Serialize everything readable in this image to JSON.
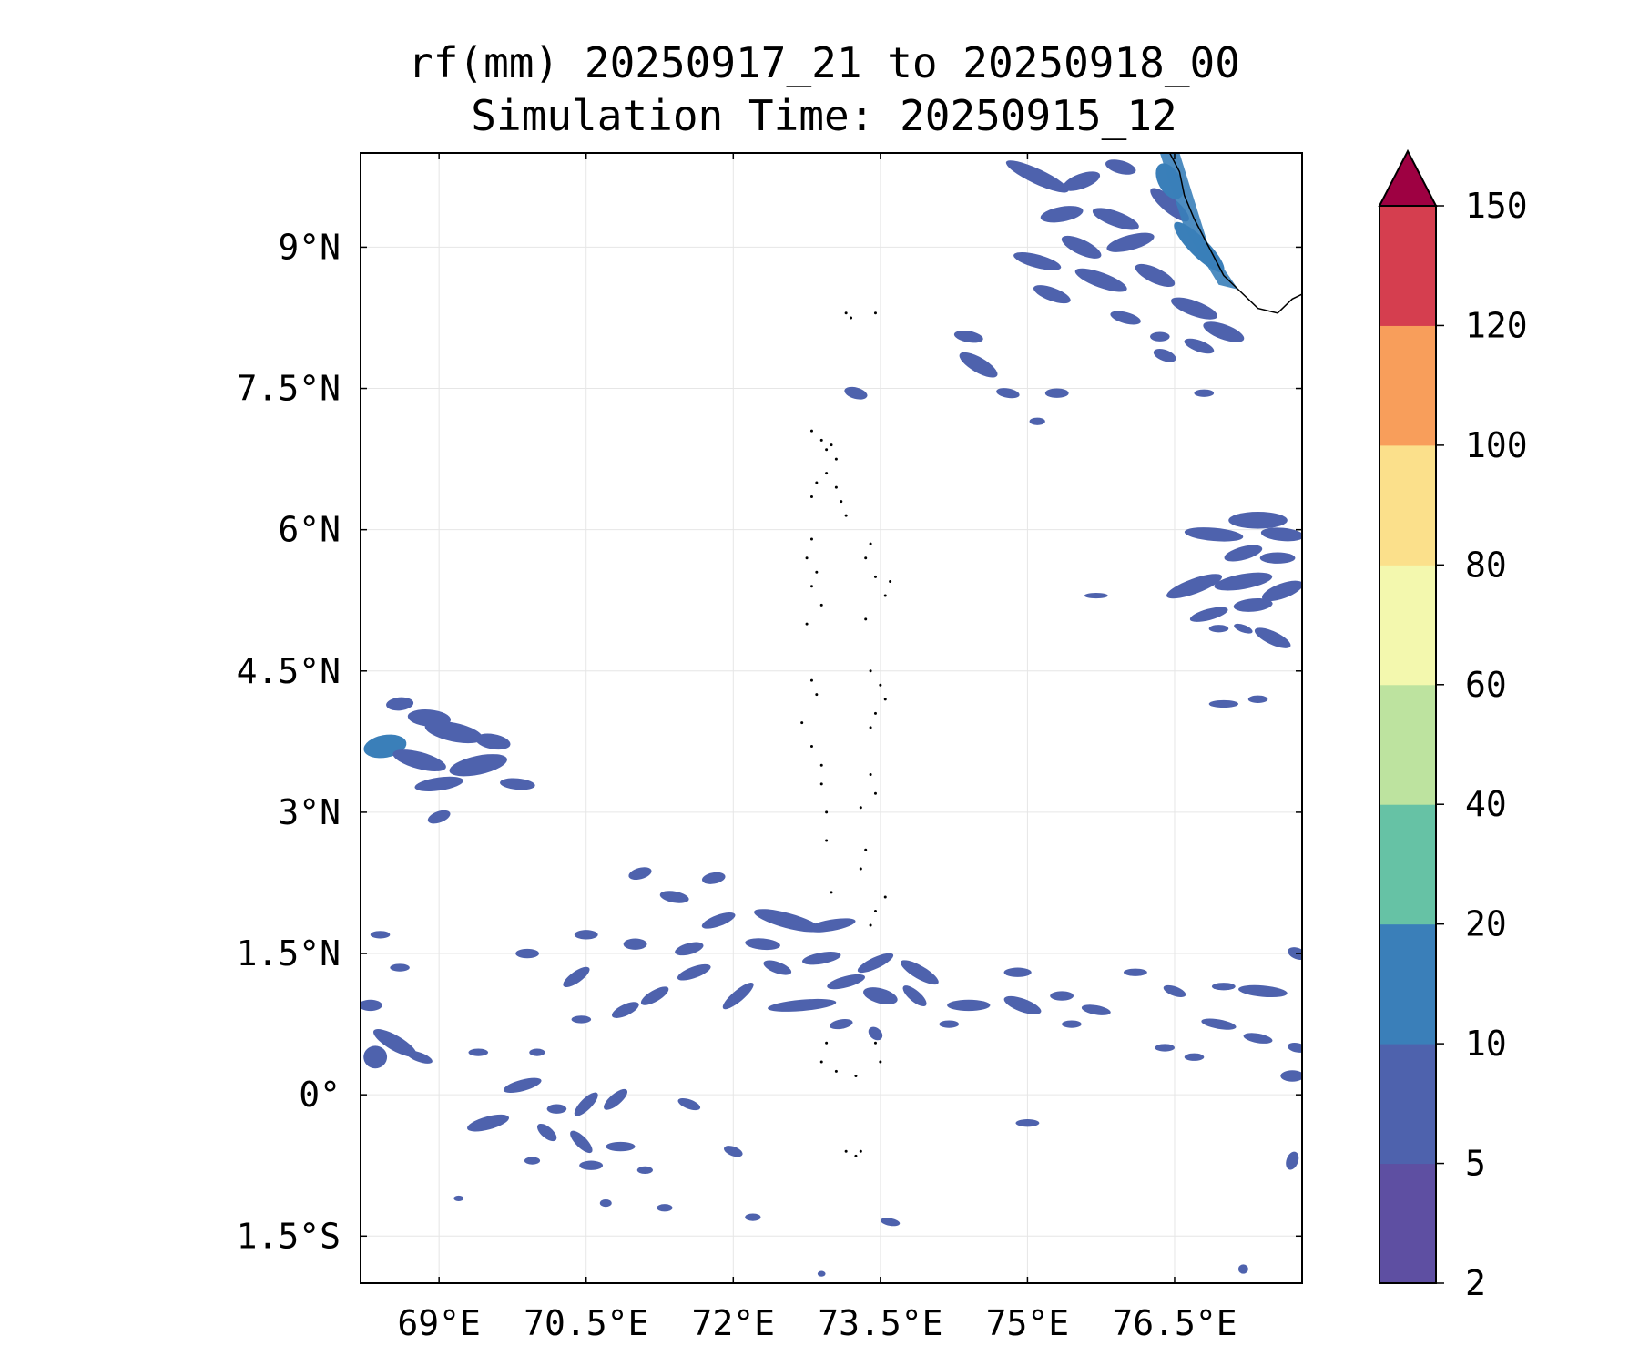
{
  "title": {
    "line1": "rf(mm) 20250917_21 to 20250918_00",
    "line2": "Simulation Time: 20250915_12"
  },
  "map": {
    "extent": {
      "lon_min": 68.2,
      "lon_max": 77.8,
      "lat_min": -2.0,
      "lat_max": 10.0
    },
    "lon_ticks": [
      {
        "value": 69.0,
        "label": "69°E"
      },
      {
        "value": 70.5,
        "label": "70.5°E"
      },
      {
        "value": 72.0,
        "label": "72°E"
      },
      {
        "value": 73.5,
        "label": "73.5°E"
      },
      {
        "value": 75.0,
        "label": "75°E"
      },
      {
        "value": 76.5,
        "label": "76.5°E"
      }
    ],
    "lat_ticks": [
      {
        "value": 9.0,
        "label": "9°N"
      },
      {
        "value": 7.5,
        "label": "7.5°N"
      },
      {
        "value": 6.0,
        "label": "6°N"
      },
      {
        "value": 4.5,
        "label": "4.5°N"
      },
      {
        "value": 3.0,
        "label": "3°N"
      },
      {
        "value": 1.5,
        "label": "1.5°N"
      },
      {
        "value": 0.0,
        "label": "0°"
      },
      {
        "value": -1.5,
        "label": "1.5°S"
      }
    ],
    "grid": true,
    "coastline_color": "#000000",
    "rain_cells": [
      {
        "lon": 68.6,
        "lat": 4.15,
        "rx": 0.14,
        "ry": 0.07,
        "rot": -5,
        "level": 2
      },
      {
        "lon": 68.9,
        "lat": 4.0,
        "rx": 0.22,
        "ry": 0.09,
        "rot": 5,
        "level": 2
      },
      {
        "lon": 69.15,
        "lat": 3.85,
        "rx": 0.3,
        "ry": 0.1,
        "rot": 12,
        "level": 2
      },
      {
        "lon": 68.45,
        "lat": 3.7,
        "rx": 0.22,
        "ry": 0.12,
        "rot": -10,
        "level": 3
      },
      {
        "lon": 68.8,
        "lat": 3.55,
        "rx": 0.28,
        "ry": 0.09,
        "rot": 15,
        "level": 2
      },
      {
        "lon": 69.4,
        "lat": 3.5,
        "rx": 0.3,
        "ry": 0.1,
        "rot": -12,
        "level": 2
      },
      {
        "lon": 69.0,
        "lat": 3.3,
        "rx": 0.25,
        "ry": 0.07,
        "rot": -8,
        "level": 2
      },
      {
        "lon": 69.8,
        "lat": 3.3,
        "rx": 0.18,
        "ry": 0.06,
        "rot": 5,
        "level": 2
      },
      {
        "lon": 69.55,
        "lat": 3.75,
        "rx": 0.18,
        "ry": 0.08,
        "rot": 10,
        "level": 2
      },
      {
        "lon": 69.0,
        "lat": 2.95,
        "rx": 0.12,
        "ry": 0.06,
        "rot": -20,
        "level": 2
      },
      {
        "lon": 75.1,
        "lat": 9.75,
        "rx": 0.35,
        "ry": 0.08,
        "rot": 25,
        "level": 2
      },
      {
        "lon": 75.55,
        "lat": 9.7,
        "rx": 0.2,
        "ry": 0.08,
        "rot": -20,
        "level": 2
      },
      {
        "lon": 75.95,
        "lat": 9.85,
        "rx": 0.16,
        "ry": 0.07,
        "rot": 15,
        "level": 2
      },
      {
        "lon": 75.35,
        "lat": 9.35,
        "rx": 0.22,
        "ry": 0.08,
        "rot": -10,
        "level": 2
      },
      {
        "lon": 75.9,
        "lat": 9.3,
        "rx": 0.25,
        "ry": 0.08,
        "rot": 20,
        "level": 2
      },
      {
        "lon": 75.1,
        "lat": 8.85,
        "rx": 0.25,
        "ry": 0.07,
        "rot": 15,
        "level": 2
      },
      {
        "lon": 75.55,
        "lat": 9.0,
        "rx": 0.22,
        "ry": 0.08,
        "rot": 25,
        "level": 2
      },
      {
        "lon": 76.05,
        "lat": 9.05,
        "rx": 0.25,
        "ry": 0.08,
        "rot": -15,
        "level": 2
      },
      {
        "lon": 75.75,
        "lat": 8.65,
        "rx": 0.28,
        "ry": 0.08,
        "rot": 20,
        "level": 2
      },
      {
        "lon": 76.3,
        "lat": 8.7,
        "rx": 0.22,
        "ry": 0.08,
        "rot": 25,
        "level": 2
      },
      {
        "lon": 75.25,
        "lat": 8.5,
        "rx": 0.2,
        "ry": 0.07,
        "rot": 20,
        "level": 2
      },
      {
        "lon": 76.0,
        "lat": 8.25,
        "rx": 0.16,
        "ry": 0.06,
        "rot": 15,
        "level": 2
      },
      {
        "lon": 76.7,
        "lat": 8.35,
        "rx": 0.25,
        "ry": 0.08,
        "rot": 20,
        "level": 2
      },
      {
        "lon": 77.0,
        "lat": 8.1,
        "rx": 0.22,
        "ry": 0.08,
        "rot": 20,
        "level": 2
      },
      {
        "lon": 76.75,
        "lat": 7.95,
        "rx": 0.16,
        "ry": 0.06,
        "rot": 20,
        "level": 2
      },
      {
        "lon": 76.35,
        "lat": 8.05,
        "rx": 0.1,
        "ry": 0.05,
        "rot": 0,
        "level": 2
      },
      {
        "lon": 76.45,
        "lat": 9.45,
        "rx": 0.25,
        "ry": 0.08,
        "rot": 40,
        "level": 2
      },
      {
        "lon": 76.75,
        "lat": 9.0,
        "rx": 0.35,
        "ry": 0.1,
        "rot": 45,
        "level": 3
      },
      {
        "lon": 76.45,
        "lat": 9.7,
        "rx": 0.2,
        "ry": 0.12,
        "rot": 60,
        "level": 3
      },
      {
        "lon": 74.4,
        "lat": 8.05,
        "rx": 0.15,
        "ry": 0.06,
        "rot": 10,
        "level": 2
      },
      {
        "lon": 74.5,
        "lat": 7.75,
        "rx": 0.22,
        "ry": 0.08,
        "rot": 30,
        "level": 2
      },
      {
        "lon": 74.8,
        "lat": 7.45,
        "rx": 0.12,
        "ry": 0.05,
        "rot": 10,
        "level": 2
      },
      {
        "lon": 75.3,
        "lat": 7.45,
        "rx": 0.12,
        "ry": 0.05,
        "rot": 0,
        "level": 2
      },
      {
        "lon": 75.1,
        "lat": 7.15,
        "rx": 0.08,
        "ry": 0.04,
        "rot": 0,
        "level": 2
      },
      {
        "lon": 76.4,
        "lat": 7.85,
        "rx": 0.12,
        "ry": 0.06,
        "rot": 20,
        "level": 2
      },
      {
        "lon": 76.8,
        "lat": 7.45,
        "rx": 0.1,
        "ry": 0.04,
        "rot": 0,
        "level": 2
      },
      {
        "lon": 73.25,
        "lat": 7.45,
        "rx": 0.12,
        "ry": 0.06,
        "rot": 15,
        "level": 2
      },
      {
        "lon": 76.9,
        "lat": 5.95,
        "rx": 0.3,
        "ry": 0.07,
        "rot": 5,
        "level": 2
      },
      {
        "lon": 77.35,
        "lat": 6.1,
        "rx": 0.3,
        "ry": 0.09,
        "rot": 0,
        "level": 2
      },
      {
        "lon": 77.6,
        "lat": 5.95,
        "rx": 0.22,
        "ry": 0.07,
        "rot": 5,
        "level": 2
      },
      {
        "lon": 77.2,
        "lat": 5.75,
        "rx": 0.2,
        "ry": 0.07,
        "rot": -15,
        "level": 2
      },
      {
        "lon": 77.55,
        "lat": 5.7,
        "rx": 0.18,
        "ry": 0.06,
        "rot": 0,
        "level": 2
      },
      {
        "lon": 76.7,
        "lat": 5.4,
        "rx": 0.3,
        "ry": 0.08,
        "rot": -20,
        "level": 2
      },
      {
        "lon": 77.2,
        "lat": 5.45,
        "rx": 0.3,
        "ry": 0.08,
        "rot": -10,
        "level": 2
      },
      {
        "lon": 77.6,
        "lat": 5.35,
        "rx": 0.22,
        "ry": 0.08,
        "rot": -20,
        "level": 2
      },
      {
        "lon": 77.3,
        "lat": 5.2,
        "rx": 0.2,
        "ry": 0.07,
        "rot": -5,
        "level": 2
      },
      {
        "lon": 76.85,
        "lat": 5.1,
        "rx": 0.2,
        "ry": 0.06,
        "rot": -15,
        "level": 2
      },
      {
        "lon": 77.5,
        "lat": 4.85,
        "rx": 0.2,
        "ry": 0.07,
        "rot": 25,
        "level": 2
      },
      {
        "lon": 76.95,
        "lat": 4.95,
        "rx": 0.1,
        "ry": 0.04,
        "rot": 0,
        "level": 2
      },
      {
        "lon": 77.2,
        "lat": 4.95,
        "rx": 0.1,
        "ry": 0.04,
        "rot": 20,
        "level": 2
      },
      {
        "lon": 75.7,
        "lat": 5.3,
        "rx": 0.12,
        "ry": 0.03,
        "rot": 0,
        "level": 2
      },
      {
        "lon": 77.0,
        "lat": 4.15,
        "rx": 0.15,
        "ry": 0.04,
        "rot": 0,
        "level": 2
      },
      {
        "lon": 77.35,
        "lat": 4.2,
        "rx": 0.1,
        "ry": 0.04,
        "rot": 0,
        "level": 2
      },
      {
        "lon": 71.8,
        "lat": 2.3,
        "rx": 0.12,
        "ry": 0.06,
        "rot": -10,
        "level": 2
      },
      {
        "lon": 71.05,
        "lat": 2.35,
        "rx": 0.12,
        "ry": 0.06,
        "rot": -15,
        "level": 2
      },
      {
        "lon": 71.4,
        "lat": 2.1,
        "rx": 0.15,
        "ry": 0.06,
        "rot": 10,
        "level": 2
      },
      {
        "lon": 72.55,
        "lat": 1.85,
        "rx": 0.35,
        "ry": 0.08,
        "rot": 15,
        "level": 2
      },
      {
        "lon": 73.0,
        "lat": 1.8,
        "rx": 0.25,
        "ry": 0.06,
        "rot": -10,
        "level": 2
      },
      {
        "lon": 72.3,
        "lat": 1.6,
        "rx": 0.18,
        "ry": 0.06,
        "rot": 5,
        "level": 2
      },
      {
        "lon": 71.0,
        "lat": 1.6,
        "rx": 0.12,
        "ry": 0.06,
        "rot": 0,
        "level": 2
      },
      {
        "lon": 71.55,
        "lat": 1.55,
        "rx": 0.15,
        "ry": 0.06,
        "rot": -15,
        "level": 2
      },
      {
        "lon": 71.85,
        "lat": 1.85,
        "rx": 0.18,
        "ry": 0.06,
        "rot": -20,
        "level": 2
      },
      {
        "lon": 72.9,
        "lat": 1.45,
        "rx": 0.2,
        "ry": 0.06,
        "rot": -10,
        "level": 2
      },
      {
        "lon": 72.45,
        "lat": 1.35,
        "rx": 0.15,
        "ry": 0.06,
        "rot": 20,
        "level": 2
      },
      {
        "lon": 71.6,
        "lat": 1.3,
        "rx": 0.18,
        "ry": 0.06,
        "rot": -20,
        "level": 2
      },
      {
        "lon": 73.45,
        "lat": 1.4,
        "rx": 0.2,
        "ry": 0.06,
        "rot": -25,
        "level": 2
      },
      {
        "lon": 73.9,
        "lat": 1.3,
        "rx": 0.22,
        "ry": 0.07,
        "rot": 30,
        "level": 2
      },
      {
        "lon": 73.15,
        "lat": 1.2,
        "rx": 0.2,
        "ry": 0.06,
        "rot": -15,
        "level": 2
      },
      {
        "lon": 73.5,
        "lat": 1.05,
        "rx": 0.18,
        "ry": 0.08,
        "rot": 15,
        "level": 2
      },
      {
        "lon": 73.85,
        "lat": 1.05,
        "rx": 0.15,
        "ry": 0.06,
        "rot": 40,
        "level": 2
      },
      {
        "lon": 72.05,
        "lat": 1.05,
        "rx": 0.2,
        "ry": 0.06,
        "rot": -40,
        "level": 2
      },
      {
        "lon": 71.2,
        "lat": 1.05,
        "rx": 0.16,
        "ry": 0.06,
        "rot": -30,
        "level": 2
      },
      {
        "lon": 70.4,
        "lat": 1.25,
        "rx": 0.16,
        "ry": 0.06,
        "rot": -35,
        "level": 2
      },
      {
        "lon": 70.9,
        "lat": 0.9,
        "rx": 0.15,
        "ry": 0.06,
        "rot": -25,
        "level": 2
      },
      {
        "lon": 72.7,
        "lat": 0.95,
        "rx": 0.35,
        "ry": 0.06,
        "rot": -5,
        "level": 2
      },
      {
        "lon": 73.1,
        "lat": 0.75,
        "rx": 0.12,
        "ry": 0.05,
        "rot": -10,
        "level": 2
      },
      {
        "lon": 73.45,
        "lat": 0.65,
        "rx": 0.08,
        "ry": 0.06,
        "rot": 40,
        "level": 2
      },
      {
        "lon": 74.4,
        "lat": 0.95,
        "rx": 0.22,
        "ry": 0.06,
        "rot": 0,
        "level": 2
      },
      {
        "lon": 74.2,
        "lat": 0.75,
        "rx": 0.1,
        "ry": 0.04,
        "rot": 0,
        "level": 2
      },
      {
        "lon": 74.9,
        "lat": 1.3,
        "rx": 0.14,
        "ry": 0.05,
        "rot": 0,
        "level": 2
      },
      {
        "lon": 74.95,
        "lat": 0.95,
        "rx": 0.2,
        "ry": 0.07,
        "rot": 20,
        "level": 2
      },
      {
        "lon": 75.35,
        "lat": 1.05,
        "rx": 0.12,
        "ry": 0.05,
        "rot": 0,
        "level": 2
      },
      {
        "lon": 75.7,
        "lat": 0.9,
        "rx": 0.15,
        "ry": 0.05,
        "rot": 10,
        "level": 2
      },
      {
        "lon": 75.45,
        "lat": 0.75,
        "rx": 0.1,
        "ry": 0.04,
        "rot": 0,
        "level": 2
      },
      {
        "lon": 76.1,
        "lat": 1.3,
        "rx": 0.12,
        "ry": 0.04,
        "rot": 0,
        "level": 2
      },
      {
        "lon": 76.5,
        "lat": 1.1,
        "rx": 0.12,
        "ry": 0.05,
        "rot": 20,
        "level": 2
      },
      {
        "lon": 77.0,
        "lat": 1.15,
        "rx": 0.12,
        "ry": 0.04,
        "rot": 0,
        "level": 2
      },
      {
        "lon": 77.4,
        "lat": 1.1,
        "rx": 0.25,
        "ry": 0.06,
        "rot": 5,
        "level": 2
      },
      {
        "lon": 77.75,
        "lat": 1.5,
        "rx": 0.1,
        "ry": 0.06,
        "rot": 20,
        "level": 2
      },
      {
        "lon": 76.95,
        "lat": 0.75,
        "rx": 0.18,
        "ry": 0.05,
        "rot": 10,
        "level": 2
      },
      {
        "lon": 77.35,
        "lat": 0.6,
        "rx": 0.15,
        "ry": 0.05,
        "rot": 10,
        "level": 2
      },
      {
        "lon": 77.75,
        "lat": 0.5,
        "rx": 0.1,
        "ry": 0.05,
        "rot": 10,
        "level": 2
      },
      {
        "lon": 76.4,
        "lat": 0.5,
        "rx": 0.1,
        "ry": 0.04,
        "rot": 0,
        "level": 2
      },
      {
        "lon": 76.7,
        "lat": 0.4,
        "rx": 0.1,
        "ry": 0.04,
        "rot": 0,
        "level": 2
      },
      {
        "lon": 77.7,
        "lat": 0.2,
        "rx": 0.12,
        "ry": 0.06,
        "rot": 0,
        "level": 2
      },
      {
        "lon": 77.7,
        "lat": -0.7,
        "rx": 0.06,
        "ry": 0.1,
        "rot": 20,
        "level": 2
      },
      {
        "lon": 68.55,
        "lat": 0.55,
        "rx": 0.25,
        "ry": 0.08,
        "rot": 30,
        "level": 2
      },
      {
        "lon": 68.35,
        "lat": 0.4,
        "rx": 0.12,
        "ry": 0.12,
        "rot": 0,
        "level": 2
      },
      {
        "lon": 68.3,
        "lat": 0.95,
        "rx": 0.12,
        "ry": 0.06,
        "rot": 0,
        "level": 2
      },
      {
        "lon": 68.6,
        "lat": 1.35,
        "rx": 0.1,
        "ry": 0.04,
        "rot": 0,
        "level": 2
      },
      {
        "lon": 68.4,
        "lat": 1.7,
        "rx": 0.1,
        "ry": 0.04,
        "rot": 0,
        "level": 2
      },
      {
        "lon": 68.8,
        "lat": 0.4,
        "rx": 0.14,
        "ry": 0.05,
        "rot": 20,
        "level": 2
      },
      {
        "lon": 69.9,
        "lat": 1.5,
        "rx": 0.12,
        "ry": 0.05,
        "rot": 0,
        "level": 2
      },
      {
        "lon": 70.5,
        "lat": 1.7,
        "rx": 0.12,
        "ry": 0.05,
        "rot": 0,
        "level": 2
      },
      {
        "lon": 69.4,
        "lat": 0.45,
        "rx": 0.1,
        "ry": 0.04,
        "rot": 0,
        "level": 2
      },
      {
        "lon": 70.0,
        "lat": 0.45,
        "rx": 0.08,
        "ry": 0.04,
        "rot": 0,
        "level": 2
      },
      {
        "lon": 70.45,
        "lat": 0.8,
        "rx": 0.1,
        "ry": 0.04,
        "rot": 0,
        "level": 2
      },
      {
        "lon": 69.85,
        "lat": 0.1,
        "rx": 0.2,
        "ry": 0.06,
        "rot": -15,
        "level": 2
      },
      {
        "lon": 70.2,
        "lat": -0.15,
        "rx": 0.1,
        "ry": 0.05,
        "rot": 0,
        "level": 2
      },
      {
        "lon": 70.5,
        "lat": -0.1,
        "rx": 0.16,
        "ry": 0.06,
        "rot": -45,
        "level": 2
      },
      {
        "lon": 70.8,
        "lat": -0.05,
        "rx": 0.15,
        "ry": 0.06,
        "rot": -40,
        "level": 2
      },
      {
        "lon": 69.5,
        "lat": -0.3,
        "rx": 0.22,
        "ry": 0.07,
        "rot": -15,
        "level": 2
      },
      {
        "lon": 70.1,
        "lat": -0.4,
        "rx": 0.12,
        "ry": 0.06,
        "rot": 40,
        "level": 2
      },
      {
        "lon": 70.45,
        "lat": -0.5,
        "rx": 0.15,
        "ry": 0.06,
        "rot": 45,
        "level": 2
      },
      {
        "lon": 70.85,
        "lat": -0.55,
        "rx": 0.15,
        "ry": 0.05,
        "rot": 0,
        "level": 2
      },
      {
        "lon": 69.95,
        "lat": -0.7,
        "rx": 0.08,
        "ry": 0.04,
        "rot": 0,
        "level": 2
      },
      {
        "lon": 70.55,
        "lat": -0.75,
        "rx": 0.12,
        "ry": 0.05,
        "rot": 0,
        "level": 2
      },
      {
        "lon": 71.1,
        "lat": -0.8,
        "rx": 0.08,
        "ry": 0.04,
        "rot": 0,
        "level": 2
      },
      {
        "lon": 72.0,
        "lat": -0.6,
        "rx": 0.1,
        "ry": 0.05,
        "rot": 20,
        "level": 2
      },
      {
        "lon": 71.55,
        "lat": -0.1,
        "rx": 0.12,
        "ry": 0.05,
        "rot": 20,
        "level": 2
      },
      {
        "lon": 75.0,
        "lat": -0.3,
        "rx": 0.12,
        "ry": 0.04,
        "rot": 0,
        "level": 2
      },
      {
        "lon": 73.6,
        "lat": -1.35,
        "rx": 0.1,
        "ry": 0.04,
        "rot": 10,
        "level": 2
      },
      {
        "lon": 71.3,
        "lat": -1.2,
        "rx": 0.08,
        "ry": 0.04,
        "rot": 0,
        "level": 2
      },
      {
        "lon": 72.2,
        "lat": -1.3,
        "rx": 0.08,
        "ry": 0.04,
        "rot": 0,
        "level": 2
      },
      {
        "lon": 70.7,
        "lat": -1.15,
        "rx": 0.06,
        "ry": 0.04,
        "rot": 0,
        "level": 2
      },
      {
        "lon": 69.2,
        "lat": -1.1,
        "rx": 0.05,
        "ry": 0.03,
        "rot": 0,
        "level": 2
      },
      {
        "lon": 77.2,
        "lat": -1.85,
        "rx": 0.05,
        "ry": 0.05,
        "rot": 0,
        "level": 2
      },
      {
        "lon": 72.9,
        "lat": -1.9,
        "rx": 0.04,
        "ry": 0.03,
        "rot": 0,
        "level": 2
      }
    ],
    "coastline_land": "India southwest coast (Kerala)",
    "islands": "Lakshadweep and Maldives atolls"
  },
  "colorbar": {
    "levels": [
      2,
      5,
      10,
      20,
      40,
      60,
      80,
      100,
      120,
      150
    ],
    "tick_labels": [
      "2",
      "5",
      "10",
      "20",
      "40",
      "60",
      "80",
      "100",
      "120",
      "150"
    ],
    "colors": [
      "#5e4fa2",
      "#4e62ad",
      "#3a7fb9",
      "#66c2a5",
      "#bde39f",
      "#f3f8ae",
      "#fbe08b",
      "#f89e5b",
      "#d53e4f"
    ],
    "extend_color": "#9e0142",
    "extend": "max"
  }
}
